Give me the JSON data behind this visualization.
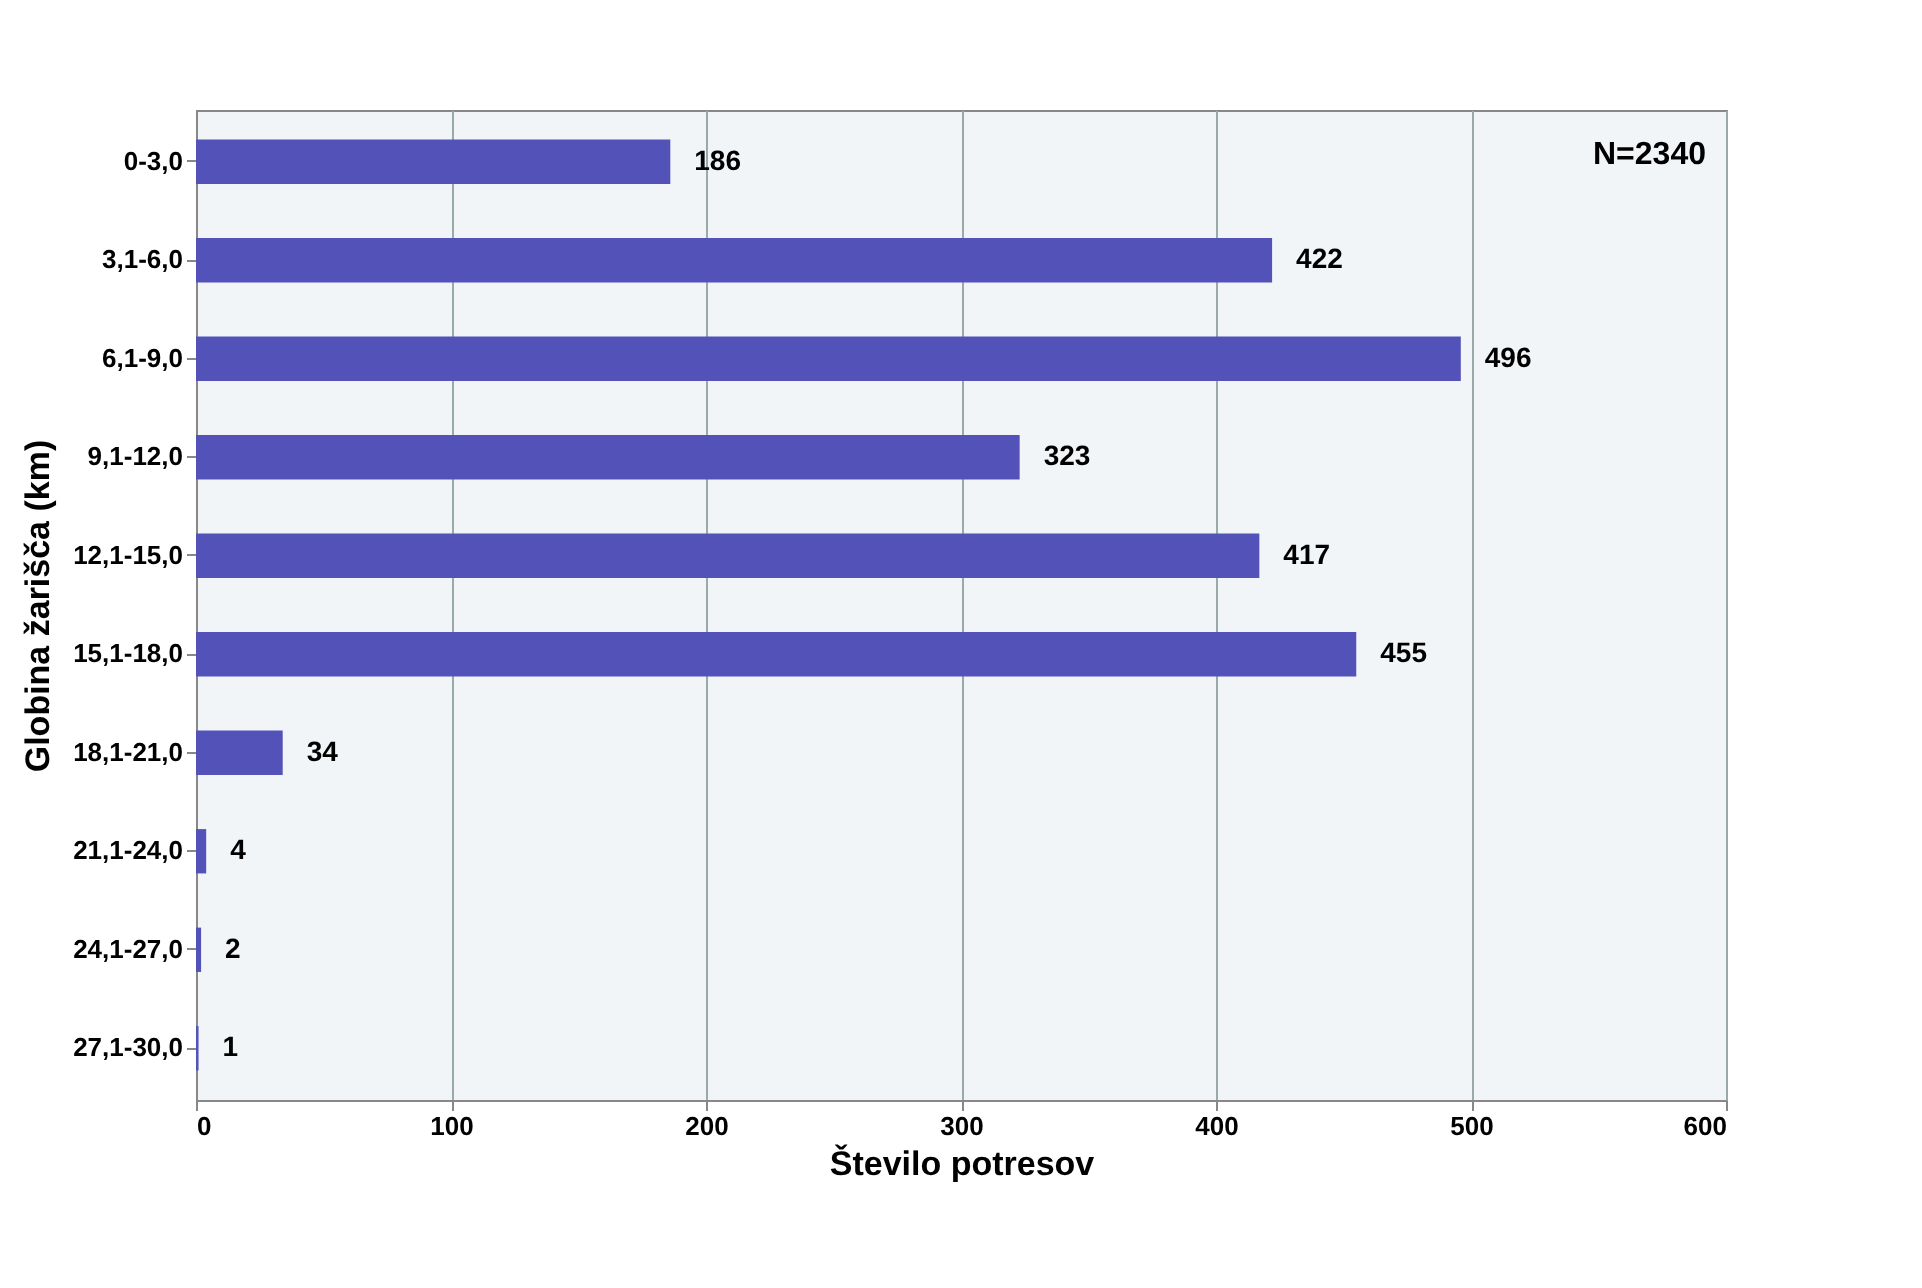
{
  "chart_data": {
    "type": "bar",
    "orientation": "horizontal",
    "xlabel": "Število potresov",
    "ylabel": "Globina žarišča (km)",
    "categories": [
      "0-3,0",
      "3,1-6,0",
      "6,1-9,0",
      "9,1-12,0",
      "12,1-15,0",
      "15,1-18,0",
      "18,1-21,0",
      "21,1-24,0",
      "24,1-27,0",
      "27,1-30,0"
    ],
    "values": [
      186,
      422,
      496,
      323,
      417,
      455,
      34,
      4,
      2,
      1
    ],
    "color": "#5252b8",
    "xlim": [
      0,
      600
    ],
    "xticks": [
      0,
      100,
      200,
      300,
      400,
      500,
      600
    ],
    "grid": "x",
    "data_labels": true,
    "annotations": [
      "N=2340"
    ]
  }
}
